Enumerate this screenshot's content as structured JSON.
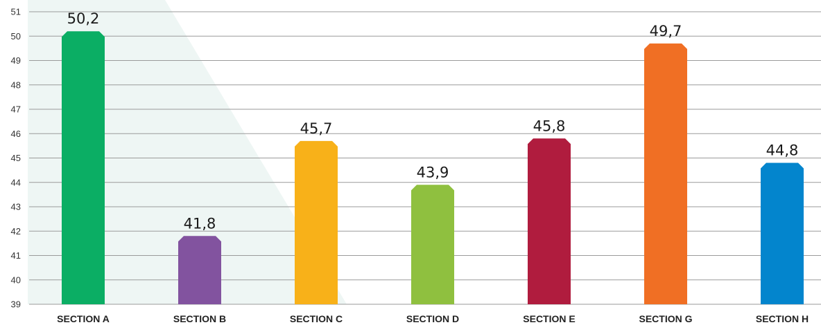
{
  "chart_data": {
    "type": "bar",
    "title": "",
    "xlabel": "",
    "ylabel": "",
    "ylim": [
      39,
      51
    ],
    "yticks": [
      39,
      40,
      41,
      42,
      43,
      44,
      45,
      46,
      47,
      48,
      49,
      50,
      51
    ],
    "grid": true,
    "legend": "none",
    "categories": [
      "SECTION A",
      "SECTION B",
      "SECTION C",
      "SECTION D",
      "SECTION E",
      "SECTION G",
      "SECTION H"
    ],
    "values": [
      50.2,
      41.8,
      45.7,
      43.9,
      45.8,
      49.7,
      44.8
    ],
    "value_labels": [
      "50,2",
      "41,8",
      "45,7",
      "43,9",
      "45,8",
      "49,7",
      "44,8"
    ],
    "colors": [
      "#0bae64",
      "#82539f",
      "#f8b119",
      "#8fc03f",
      "#b01c3e",
      "#f06f24",
      "#0385cd"
    ],
    "background_accent": "#eef6f4"
  }
}
